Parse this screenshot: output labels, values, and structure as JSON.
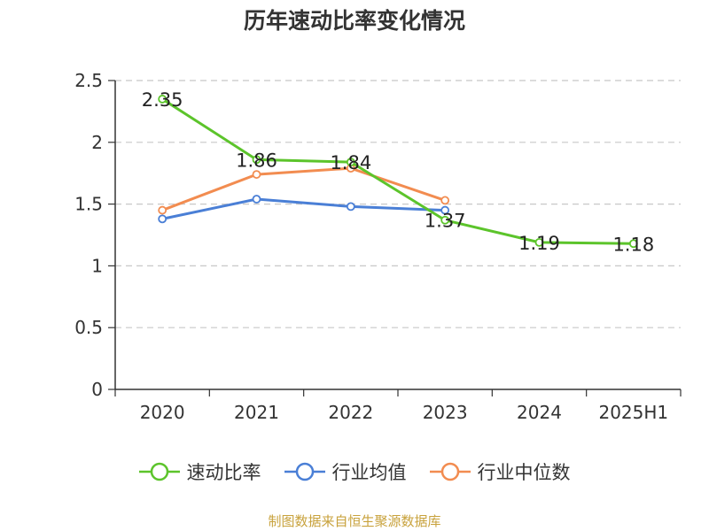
{
  "chart_data": {
    "type": "line",
    "title": "历年速动比率变化情况",
    "categories": [
      "2020",
      "2021",
      "2022",
      "2023",
      "2024",
      "2025H1"
    ],
    "ylim": [
      0,
      2.5
    ],
    "yticks": [
      "0",
      "0.5",
      "1",
      "1.5",
      "2",
      "2.5"
    ],
    "grid": true,
    "legend_position": "bottom",
    "series": [
      {
        "name": "速动比率",
        "color": "#5cc42b",
        "values": [
          2.35,
          1.86,
          1.84,
          1.37,
          1.19,
          1.18
        ],
        "labels": [
          "2.35",
          "1.86",
          "1.84",
          "1.37",
          "1.19",
          "1.18"
        ]
      },
      {
        "name": "行业均值",
        "color": "#4a7fd6",
        "values": [
          1.38,
          1.54,
          1.48,
          1.45,
          null,
          null
        ]
      },
      {
        "name": "行业中位数",
        "color": "#f28c50",
        "values": [
          1.45,
          1.74,
          1.79,
          1.53,
          null,
          null
        ]
      }
    ]
  },
  "footer": {
    "source": "制图数据来自恒生聚源数据库"
  }
}
